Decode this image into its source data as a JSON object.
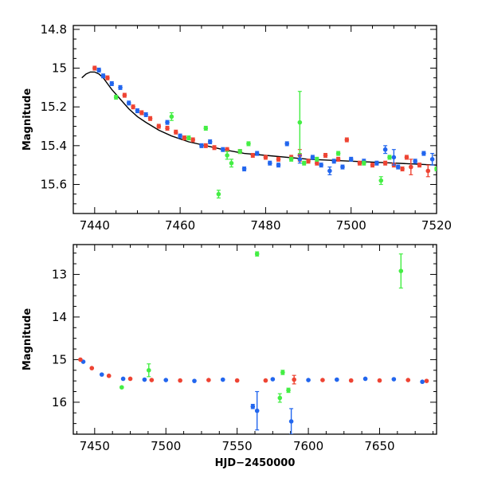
{
  "chart_data": [
    {
      "type": "scatter",
      "title": "",
      "xlabel": "",
      "ylabel": "Magnitude",
      "xlim": [
        7435,
        7520
      ],
      "ylim": [
        15.75,
        14.78
      ],
      "y_inverted": true,
      "grid": false,
      "x_ticks": [
        7440,
        7460,
        7480,
        7500,
        7520
      ],
      "x_tick_labels": [
        "7440",
        "7460",
        "7480",
        "7500",
        "7520"
      ],
      "y_ticks": [
        14.8,
        15,
        15.2,
        15.4,
        15.6
      ],
      "y_tick_labels": [
        "14.8",
        "15",
        "15.2",
        "15.4",
        "15.6"
      ],
      "series": [
        {
          "color": "#ee4433",
          "marker": "circle-with-errorbar",
          "points": [
            {
              "x": 7440,
              "y": 15.0,
              "e": 0.01
            },
            {
              "x": 7443,
              "y": 15.05,
              "e": 0.01
            },
            {
              "x": 7447,
              "y": 15.14,
              "e": 0.01
            },
            {
              "x": 7449,
              "y": 15.2,
              "e": 0.01
            },
            {
              "x": 7451,
              "y": 15.23,
              "e": 0.01
            },
            {
              "x": 7453,
              "y": 15.26,
              "e": 0.01
            },
            {
              "x": 7455,
              "y": 15.3,
              "e": 0.01
            },
            {
              "x": 7457,
              "y": 15.31,
              "e": 0.01
            },
            {
              "x": 7459,
              "y": 15.33,
              "e": 0.01
            },
            {
              "x": 7461,
              "y": 15.36,
              "e": 0.01
            },
            {
              "x": 7463,
              "y": 15.37,
              "e": 0.01
            },
            {
              "x": 7466,
              "y": 15.4,
              "e": 0.01
            },
            {
              "x": 7468,
              "y": 15.41,
              "e": 0.01
            },
            {
              "x": 7471,
              "y": 15.42,
              "e": 0.01
            },
            {
              "x": 7474,
              "y": 15.43,
              "e": 0.01
            },
            {
              "x": 7477,
              "y": 15.45,
              "e": 0.01
            },
            {
              "x": 7480,
              "y": 15.46,
              "e": 0.01
            },
            {
              "x": 7483,
              "y": 15.47,
              "e": 0.01
            },
            {
              "x": 7486,
              "y": 15.46,
              "e": 0.01
            },
            {
              "x": 7488,
              "y": 15.45,
              "e": 0.03
            },
            {
              "x": 7490,
              "y": 15.48,
              "e": 0.01
            },
            {
              "x": 7492,
              "y": 15.49,
              "e": 0.01
            },
            {
              "x": 7494,
              "y": 15.45,
              "e": 0.01
            },
            {
              "x": 7497,
              "y": 15.47,
              "e": 0.01
            },
            {
              "x": 7499,
              "y": 15.37,
              "e": 0.01
            },
            {
              "x": 7502,
              "y": 15.49,
              "e": 0.01
            },
            {
              "x": 7505,
              "y": 15.5,
              "e": 0.01
            },
            {
              "x": 7508,
              "y": 15.49,
              "e": 0.01
            },
            {
              "x": 7510,
              "y": 15.5,
              "e": 0.01
            },
            {
              "x": 7512,
              "y": 15.52,
              "e": 0.01
            },
            {
              "x": 7513,
              "y": 15.46,
              "e": 0.01
            },
            {
              "x": 7514,
              "y": 15.51,
              "e": 0.04
            },
            {
              "x": 7516,
              "y": 15.5,
              "e": 0.01
            },
            {
              "x": 7518,
              "y": 15.53,
              "e": 0.03
            }
          ]
        },
        {
          "color": "#2266ee",
          "marker": "circle-with-errorbar",
          "points": [
            {
              "x": 7441,
              "y": 15.01,
              "e": 0.01
            },
            {
              "x": 7442,
              "y": 15.04,
              "e": 0.01
            },
            {
              "x": 7444,
              "y": 15.08,
              "e": 0.01
            },
            {
              "x": 7446,
              "y": 15.1,
              "e": 0.01
            },
            {
              "x": 7448,
              "y": 15.18,
              "e": 0.01
            },
            {
              "x": 7450,
              "y": 15.22,
              "e": 0.01
            },
            {
              "x": 7452,
              "y": 15.24,
              "e": 0.01
            },
            {
              "x": 7457,
              "y": 15.28,
              "e": 0.01
            },
            {
              "x": 7460,
              "y": 15.35,
              "e": 0.01
            },
            {
              "x": 7465,
              "y": 15.4,
              "e": 0.01
            },
            {
              "x": 7467,
              "y": 15.38,
              "e": 0.01
            },
            {
              "x": 7470,
              "y": 15.42,
              "e": 0.01
            },
            {
              "x": 7475,
              "y": 15.52,
              "e": 0.01
            },
            {
              "x": 7478,
              "y": 15.44,
              "e": 0.01
            },
            {
              "x": 7481,
              "y": 15.49,
              "e": 0.01
            },
            {
              "x": 7483,
              "y": 15.5,
              "e": 0.01
            },
            {
              "x": 7485,
              "y": 15.39,
              "e": 0.01
            },
            {
              "x": 7488,
              "y": 15.47,
              "e": 0.02
            },
            {
              "x": 7491,
              "y": 15.46,
              "e": 0.01
            },
            {
              "x": 7493,
              "y": 15.5,
              "e": 0.01
            },
            {
              "x": 7495,
              "y": 15.53,
              "e": 0.02
            },
            {
              "x": 7496,
              "y": 15.48,
              "e": 0.01
            },
            {
              "x": 7498,
              "y": 15.51,
              "e": 0.01
            },
            {
              "x": 7500,
              "y": 15.47,
              "e": 0.01
            },
            {
              "x": 7503,
              "y": 15.48,
              "e": 0.01
            },
            {
              "x": 7506,
              "y": 15.49,
              "e": 0.01
            },
            {
              "x": 7508,
              "y": 15.42,
              "e": 0.02
            },
            {
              "x": 7510,
              "y": 15.46,
              "e": 0.04
            },
            {
              "x": 7511,
              "y": 15.51,
              "e": 0.01
            },
            {
              "x": 7515,
              "y": 15.48,
              "e": 0.01
            },
            {
              "x": 7517,
              "y": 15.44,
              "e": 0.01
            },
            {
              "x": 7519,
              "y": 15.47,
              "e": 0.03
            }
          ]
        },
        {
          "color": "#44ee44",
          "marker": "circle-with-errorbar",
          "points": [
            {
              "x": 7445,
              "y": 15.15,
              "e": 0.01
            },
            {
              "x": 7458,
              "y": 15.25,
              "e": 0.02
            },
            {
              "x": 7462,
              "y": 15.36,
              "e": 0.01
            },
            {
              "x": 7466,
              "y": 15.31,
              "e": 0.01
            },
            {
              "x": 7469,
              "y": 15.65,
              "e": 0.02
            },
            {
              "x": 7471,
              "y": 15.45,
              "e": 0.02
            },
            {
              "x": 7472,
              "y": 15.49,
              "e": 0.02
            },
            {
              "x": 7474,
              "y": 15.43,
              "e": 0.01
            },
            {
              "x": 7476,
              "y": 15.39,
              "e": 0.01
            },
            {
              "x": 7486,
              "y": 15.47,
              "e": 0.01
            },
            {
              "x": 7488,
              "y": 15.28,
              "e": 0.16
            },
            {
              "x": 7489,
              "y": 15.49,
              "e": 0.01
            },
            {
              "x": 7492,
              "y": 15.47,
              "e": 0.01
            },
            {
              "x": 7497,
              "y": 15.44,
              "e": 0.01
            },
            {
              "x": 7503,
              "y": 15.49,
              "e": 0.01
            },
            {
              "x": 7507,
              "y": 15.58,
              "e": 0.02
            },
            {
              "x": 7509,
              "y": 15.46,
              "e": 0.01
            },
            {
              "x": 7520,
              "y": 15.52,
              "e": 0.01
            }
          ]
        }
      ],
      "model_curve": {
        "color": "#000000",
        "x": [
          7437,
          7438,
          7439,
          7440,
          7441,
          7442,
          7443,
          7444,
          7446,
          7448,
          7450,
          7452,
          7455,
          7458,
          7462,
          7466,
          7470,
          7475,
          7480,
          7490,
          7500,
          7510,
          7520
        ],
        "y": [
          15.05,
          15.03,
          15.02,
          15.02,
          15.03,
          15.05,
          15.08,
          15.11,
          15.16,
          15.21,
          15.25,
          15.28,
          15.32,
          15.35,
          15.38,
          15.4,
          15.42,
          15.44,
          15.45,
          15.47,
          15.48,
          15.49,
          15.5
        ]
      }
    },
    {
      "type": "scatter",
      "title": "",
      "xlabel": "HJD−2450000",
      "ylabel": "Magnitude",
      "xlim": [
        7435,
        7690
      ],
      "ylim": [
        16.75,
        12.3
      ],
      "y_inverted": true,
      "grid": false,
      "x_ticks": [
        7450,
        7500,
        7550,
        7600,
        7650
      ],
      "x_tick_labels": [
        "7450",
        "7500",
        "7550",
        "7600",
        "7650"
      ],
      "y_ticks": [
        13,
        14,
        15,
        16
      ],
      "y_tick_labels": [
        "13",
        "14",
        "15",
        "16"
      ],
      "series": [
        {
          "color": "#2266ee",
          "marker": "circle-with-errorbar",
          "points": [
            {
              "x": 7442,
              "y": 15.05,
              "e": 0.01
            },
            {
              "x": 7455,
              "y": 15.35,
              "e": 0.01
            },
            {
              "x": 7470,
              "y": 15.45,
              "e": 0.01
            },
            {
              "x": 7485,
              "y": 15.47,
              "e": 0.01
            },
            {
              "x": 7500,
              "y": 15.48,
              "e": 0.01
            },
            {
              "x": 7520,
              "y": 15.5,
              "e": 0.01
            },
            {
              "x": 7540,
              "y": 15.47,
              "e": 0.01
            },
            {
              "x": 7561,
              "y": 16.1,
              "e": 0.05
            },
            {
              "x": 7564,
              "y": 16.2,
              "e": 0.45
            },
            {
              "x": 7575,
              "y": 15.46,
              "e": 0.01
            },
            {
              "x": 7588,
              "y": 16.45,
              "e": 0.3
            },
            {
              "x": 7600,
              "y": 15.48,
              "e": 0.01
            },
            {
              "x": 7620,
              "y": 15.47,
              "e": 0.01
            },
            {
              "x": 7640,
              "y": 15.45,
              "e": 0.01
            },
            {
              "x": 7660,
              "y": 15.46,
              "e": 0.01
            },
            {
              "x": 7680,
              "y": 15.52,
              "e": 0.01
            }
          ]
        },
        {
          "color": "#ee4433",
          "marker": "circle-with-errorbar",
          "points": [
            {
              "x": 7440,
              "y": 15.0,
              "e": 0.01
            },
            {
              "x": 7448,
              "y": 15.2,
              "e": 0.01
            },
            {
              "x": 7460,
              "y": 15.38,
              "e": 0.01
            },
            {
              "x": 7475,
              "y": 15.45,
              "e": 0.01
            },
            {
              "x": 7490,
              "y": 15.48,
              "e": 0.01
            },
            {
              "x": 7510,
              "y": 15.49,
              "e": 0.01
            },
            {
              "x": 7530,
              "y": 15.48,
              "e": 0.01
            },
            {
              "x": 7550,
              "y": 15.49,
              "e": 0.01
            },
            {
              "x": 7570,
              "y": 15.49,
              "e": 0.01
            },
            {
              "x": 7590,
              "y": 15.47,
              "e": 0.1
            },
            {
              "x": 7610,
              "y": 15.48,
              "e": 0.01
            },
            {
              "x": 7630,
              "y": 15.49,
              "e": 0.01
            },
            {
              "x": 7650,
              "y": 15.49,
              "e": 0.01
            },
            {
              "x": 7670,
              "y": 15.48,
              "e": 0.01
            },
            {
              "x": 7683,
              "y": 15.5,
              "e": 0.01
            }
          ]
        },
        {
          "color": "#44ee44",
          "marker": "circle-with-errorbar",
          "points": [
            {
              "x": 7469,
              "y": 15.65,
              "e": 0.02
            },
            {
              "x": 7488,
              "y": 15.25,
              "e": 0.15
            },
            {
              "x": 7564,
              "y": 12.52,
              "e": 0.05
            },
            {
              "x": 7580,
              "y": 15.9,
              "e": 0.1
            },
            {
              "x": 7582,
              "y": 15.3,
              "e": 0.05
            },
            {
              "x": 7586,
              "y": 15.72,
              "e": 0.05
            },
            {
              "x": 7665,
              "y": 12.92,
              "e": 0.4
            }
          ]
        }
      ]
    }
  ]
}
